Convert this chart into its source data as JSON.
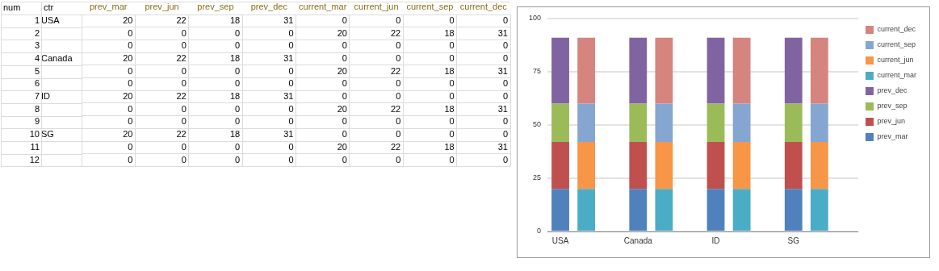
{
  "chart_data": [
    {
      "type": "heatmap",
      "ylabel": "num",
      "y2label": "ctr",
      "data_labels": true,
      "categories": [
        "prev_mar",
        "prev_jun",
        "prev_sep",
        "prev_dec",
        "current_mar",
        "current_jun",
        "current_sep",
        "current_dec"
      ],
      "y_categories": [
        "1",
        "2",
        "3",
        "4",
        "5",
        "6",
        "7",
        "8",
        "9",
        "10",
        "11",
        "12"
      ],
      "y2_categories": [
        "USA",
        null,
        null,
        "Canada",
        null,
        null,
        "ID",
        null,
        null,
        "SG",
        null,
        null
      ],
      "cells": [
        [
          20,
          22,
          18,
          31,
          0,
          0,
          0,
          0
        ],
        [
          0,
          0,
          0,
          0,
          20,
          22,
          18,
          31
        ],
        [
          0,
          0,
          0,
          0,
          0,
          0,
          0,
          0
        ],
        [
          20,
          22,
          18,
          31,
          0,
          0,
          0,
          0
        ],
        [
          0,
          0,
          0,
          0,
          20,
          22,
          18,
          31
        ],
        [
          0,
          0,
          0,
          0,
          0,
          0,
          0,
          0
        ],
        [
          20,
          22,
          18,
          31,
          0,
          0,
          0,
          0
        ],
        [
          0,
          0,
          0,
          0,
          20,
          22,
          18,
          31
        ],
        [
          0,
          0,
          0,
          0,
          0,
          0,
          0,
          0
        ],
        [
          20,
          22,
          18,
          31,
          0,
          0,
          0,
          0
        ],
        [
          0,
          0,
          0,
          0,
          20,
          22,
          18,
          31
        ],
        [
          0,
          0,
          0,
          0,
          0,
          0,
          0,
          0
        ]
      ]
    },
    {
      "type": "bar",
      "stacked": true,
      "categories": [
        "USA",
        null,
        null,
        "Canada",
        null,
        null,
        "ID",
        null,
        null,
        "SG",
        null,
        null
      ],
      "series": [
        {
          "name": "prev_mar",
          "color": "#4f81bd",
          "values": [
            20,
            0,
            0,
            20,
            0,
            0,
            20,
            0,
            0,
            20,
            0,
            0
          ]
        },
        {
          "name": "prev_jun",
          "color": "#c0504d",
          "values": [
            22,
            0,
            0,
            22,
            0,
            0,
            22,
            0,
            0,
            22,
            0,
            0
          ]
        },
        {
          "name": "prev_sep",
          "color": "#9bbb59",
          "values": [
            18,
            0,
            0,
            18,
            0,
            0,
            18,
            0,
            0,
            18,
            0,
            0
          ]
        },
        {
          "name": "prev_dec",
          "color": "#8064a2",
          "values": [
            31,
            0,
            0,
            31,
            0,
            0,
            31,
            0,
            0,
            31,
            0,
            0
          ]
        },
        {
          "name": "current_mar",
          "color": "#4bacc6",
          "values": [
            0,
            20,
            0,
            0,
            20,
            0,
            0,
            20,
            0,
            0,
            20,
            0
          ]
        },
        {
          "name": "current_jun",
          "color": "#f79646",
          "values": [
            0,
            22,
            0,
            0,
            22,
            0,
            0,
            22,
            0,
            0,
            22,
            0
          ]
        },
        {
          "name": "current_sep",
          "color": "#86a6d2",
          "values": [
            0,
            18,
            0,
            0,
            18,
            0,
            0,
            18,
            0,
            0,
            18,
            0
          ]
        },
        {
          "name": "current_dec",
          "color": "#d6847e",
          "values": [
            0,
            31,
            0,
            0,
            31,
            0,
            0,
            31,
            0,
            0,
            31,
            0
          ]
        }
      ],
      "ylim": [
        0,
        100
      ],
      "yticks": [
        0,
        25,
        50,
        75,
        100
      ],
      "grid": "y",
      "legend": "right"
    }
  ]
}
